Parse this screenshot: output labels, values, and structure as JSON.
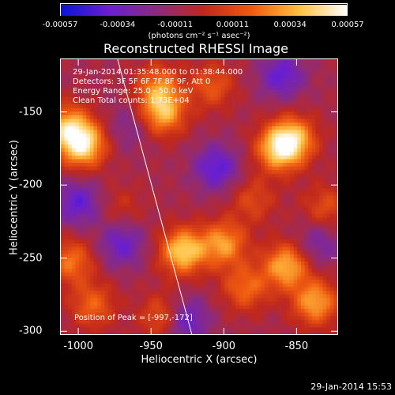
{
  "colorbar": {
    "ticks": [
      "-0.00057",
      "-0.00034",
      "-0.00011",
      "0.00011",
      "0.00034",
      "0.00057"
    ],
    "unit": "(photons cm⁻² s⁻¹ asec⁻²)",
    "colors": [
      "#0a14d8",
      "#6a1fd0",
      "#8a2b80",
      "#c0281c",
      "#ef5a10",
      "#ffc040",
      "#ffffff"
    ]
  },
  "title": "Reconstructed RHESSI Image",
  "annotations": {
    "time_range": "29-Jan-2014 01:35:48.000 to 01:38:44.000",
    "detectors": "Detectors: 3F 5F 6F 7F 8F 9F, Att 0",
    "energy_range": "Energy Range: 25.0 - 50.0 keV",
    "algorithm": "Clean     Total counts: 1.73E+04",
    "peak": "Position of Peak = [-997,-172]"
  },
  "footer": {
    "date_stamp": "29-Jan-2014 15:53"
  },
  "chart_data": {
    "type": "heatmap",
    "title": "Reconstructed RHESSI Image",
    "xlabel": "Heliocentric X (arcsec)",
    "ylabel": "Heliocentric Y (arcsec)",
    "xlim": [
      -1012,
      -822
    ],
    "ylim": [
      -302,
      -114
    ],
    "x_ticks": [
      "-1000",
      "-950",
      "-900",
      "-850"
    ],
    "y_ticks": [
      "-150",
      "-200",
      "-250",
      "-300"
    ],
    "x_tick_values": [
      -1000,
      -950,
      -900,
      -850
    ],
    "y_tick_values": [
      -150,
      -200,
      -250,
      -300
    ],
    "zlim": [
      -0.00057,
      0.00057
    ],
    "limb_line": [
      [
        -973,
        -114
      ],
      [
        -922,
        -302
      ]
    ],
    "peak": {
      "x": -997,
      "y": -172
    },
    "blobs": [
      {
        "x": -997,
        "y": -172,
        "value": 0.00057
      },
      {
        "x": -1008,
        "y": -160,
        "value": 0.0004
      },
      {
        "x": -942,
        "y": -150,
        "value": 0.00045
      },
      {
        "x": -945,
        "y": -132,
        "value": 0.0003
      },
      {
        "x": -928,
        "y": -245,
        "value": 0.00052
      },
      {
        "x": -900,
        "y": -240,
        "value": 0.0004
      },
      {
        "x": -862,
        "y": -175,
        "value": 0.00048
      },
      {
        "x": -852,
        "y": -168,
        "value": 0.0004
      },
      {
        "x": -857,
        "y": -255,
        "value": 0.00045
      },
      {
        "x": -885,
        "y": -270,
        "value": 0.0003
      },
      {
        "x": -837,
        "y": -280,
        "value": 0.00042
      },
      {
        "x": -1005,
        "y": -252,
        "value": 0.00032
      },
      {
        "x": -990,
        "y": -282,
        "value": 0.00028
      },
      {
        "x": -940,
        "y": -290,
        "value": 0.00035
      },
      {
        "x": -908,
        "y": -132,
        "value": 0.00025
      },
      {
        "x": -880,
        "y": -210,
        "value": 0.0002
      },
      {
        "x": -970,
        "y": -215,
        "value": 0.00012
      },
      {
        "x": -830,
        "y": -215,
        "value": 0.00022
      },
      {
        "x": -1000,
        "y": -212,
        "value": -0.0003
      },
      {
        "x": -905,
        "y": -188,
        "value": -0.00032
      },
      {
        "x": -970,
        "y": -240,
        "value": -0.00028
      },
      {
        "x": -860,
        "y": -125,
        "value": -0.0003
      },
      {
        "x": -928,
        "y": -292,
        "value": -0.0004
      },
      {
        "x": -965,
        "y": -160,
        "value": -0.00015
      },
      {
        "x": -835,
        "y": -240,
        "value": -0.0002
      }
    ]
  }
}
